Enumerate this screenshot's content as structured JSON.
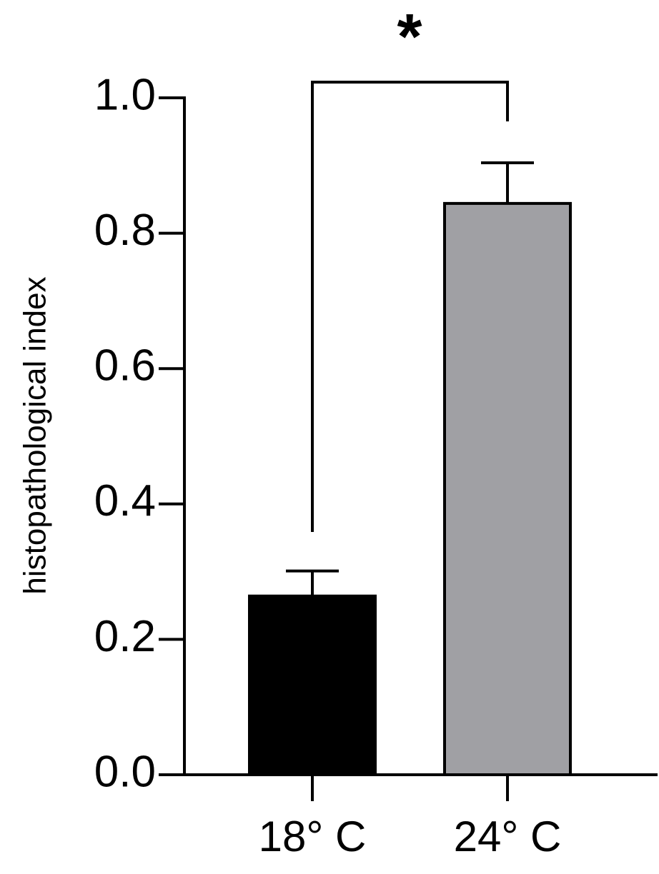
{
  "chart_data": {
    "type": "bar",
    "y_label": "histopathological index",
    "annotation": "*",
    "categories": [
      "18° C",
      "24° C"
    ],
    "values": [
      0.264,
      0.844
    ],
    "errors": [
      0.037,
      0.06
    ],
    "colors": [
      "#000000",
      "#a0a0a4"
    ],
    "ylim": [
      0,
      1
    ],
    "yticks": [
      {
        "value": 0,
        "label": "0.0"
      },
      0.2,
      0.4,
      0.6,
      0.8,
      {
        "value": 1,
        "label": "1.0"
      }
    ]
  }
}
